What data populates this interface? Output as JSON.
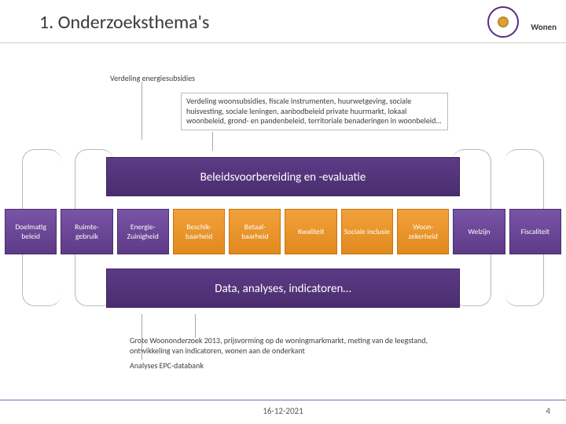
{
  "slide": {
    "title": "1. Onderzoeksthema's",
    "brand_label": "Wonen",
    "date": "16-12-2021",
    "page_number": "4"
  },
  "colors": {
    "purple_band": "#4a2d6e",
    "purple_tile": "#5d3b87",
    "orange_tile": "#e08a1e",
    "rule_purple": "#8a5fb0"
  },
  "callouts": {
    "energy": "Verdeling energiesubsidies",
    "woon": "Verdeling woonsubsidies, fiscale instrumenten, huurwetgeving, sociale huisvesting, sociale leningen, aanbodbeleid private huurmarkt, lokaal woonbeleid, grond- en pandenbeleid, territoriale benaderingen in woonbeleid…",
    "groot": "Grote Woononderzoek 2013, prijsvorming op de woningmarkmarkt, meting van de leegstand, ontwikkeling van indicatoren, wonen aan de onderkant",
    "epc": "Analyses EPC-databank"
  },
  "bands": {
    "top": "Beleidsvoorbereiding en -evaluatie",
    "bottom": "Data, analyses, indicatoren…"
  },
  "tiles": [
    {
      "label": "Doelmatig beleid",
      "style": "purple"
    },
    {
      "label": "Ruimte-gebruik",
      "style": "purple"
    },
    {
      "label": "Energie-Zuinigheid",
      "style": "purple"
    },
    {
      "label": "Beschik-baarheid",
      "style": "orange"
    },
    {
      "label": "Betaal-baarheid",
      "style": "orange"
    },
    {
      "label": "Kwaliteit",
      "style": "orange"
    },
    {
      "label": "Sociale inclusie",
      "style": "orange"
    },
    {
      "label": "Woon-zekerheid",
      "style": "orange"
    },
    {
      "label": "Welzijn",
      "style": "purple"
    },
    {
      "label": "Fiscaliteit",
      "style": "purple"
    }
  ]
}
